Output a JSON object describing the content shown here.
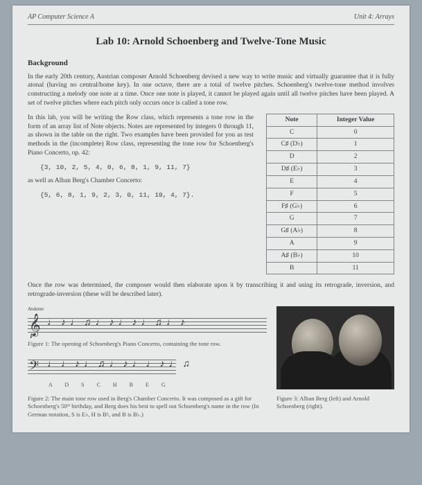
{
  "header": {
    "left": "AP Computer Science A",
    "right": "Unit 4: Arrays"
  },
  "title": "Lab 10: Arnold Schoenberg and Twelve-Tone Music",
  "background_heading": "Background",
  "background_text": "In the early 20th century, Austrian composer Arnold Schoenberg devised a new way to write music and virtually guarantee that it is fully atonal (having no central/home key). In one octave, there are a total of twelve pitches. Schoenberg's twelve-tone method involves constructing a melody one note at a time. Once one note is played, it cannot be played again until all twelve pitches have been played. A set of twelve pitches where each pitch only occurs once is called a tone row.",
  "intro_text": "In this lab, you will be writing the Row class, which represents a tone row in the form of an array list of Note objects. Notes are represented by integers 0 through 11, as shown in the table on the right. Two examples have been provided for you as test methods in the (incomplete) Row class, representing the tone row for Schoenberg's Piano Concerto, op. 42:",
  "row1": "{3, 10, 2, 5, 4, 0, 6, 8, 1, 9, 11, 7}",
  "aswellas": "as well as Alban Berg's Chamber Concerto:",
  "row2": "{5, 6, 8, 1, 9, 2, 3, 0, 11, 10, 4, 7}.",
  "table": {
    "head_note": "Note",
    "head_val": "Integer Value",
    "rows": [
      {
        "n": "C",
        "v": "0"
      },
      {
        "n": "C♯ (D♭)",
        "v": "1"
      },
      {
        "n": "D",
        "v": "2"
      },
      {
        "n": "D♯ (E♭)",
        "v": "3"
      },
      {
        "n": "E",
        "v": "4"
      },
      {
        "n": "F",
        "v": "5"
      },
      {
        "n": "F♯ (G♭)",
        "v": "6"
      },
      {
        "n": "G",
        "v": "7"
      },
      {
        "n": "G♯ (A♭)",
        "v": "8"
      },
      {
        "n": "A",
        "v": "9"
      },
      {
        "n": "A♯ (B♭)",
        "v": "10"
      },
      {
        "n": "B",
        "v": "11"
      }
    ]
  },
  "after_table": "Once the row was determined, the composer would then elaborate upon it by transcribing it and using its retrograde, inversion, and retrograde-inversion (these will be described later).",
  "andante": "Andante",
  "fig1_caption": "Figure 1: The opening of Schoenberg's Piano Concerto, containing the tone row.",
  "note_names": "A  D  S  C  H  B  E  G",
  "fig2_caption": "Figure 2: The main tone row used in Berg's Chamber Concerto. It was composed as a gift for Schoenberg's 50ᵗʰ birthday, and Berg does his best to spell out Schoenberg's name in the row (In German notation, S is E♭, H is B♮, and B is B♭.)",
  "fig3_caption": "Figure 3: Alban Berg (left) and Arnold Schoenberg (right).",
  "dyn": "p",
  "colors": {
    "page_bg": "#e8eae9",
    "outer_bg": "#9ca7b0",
    "text": "#3b3f42",
    "rule": "#7d8488"
  }
}
